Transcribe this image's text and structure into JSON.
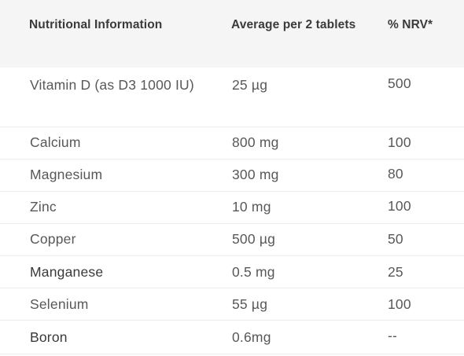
{
  "header": {
    "col1": "Nutritional Information",
    "col2": "Average per 2 tablets",
    "col3": "% NRV*"
  },
  "rows": [
    {
      "name": "Vitamin D (as D3 1000 IU)",
      "amount": "25 µg",
      "nrv": "500"
    },
    {
      "name": "Calcium",
      "amount": "800 mg",
      "nrv": "100"
    },
    {
      "name": "Magnesium",
      "amount": "300 mg",
      "nrv": "80"
    },
    {
      "name": "Zinc",
      "amount": "10 mg",
      "nrv": "100"
    },
    {
      "name": "Copper",
      "amount": "500 µg",
      "nrv": "50"
    },
    {
      "name": "Manganese",
      "amount": "0.5 mg",
      "nrv": "25"
    },
    {
      "name": "Selenium",
      "amount": "55 µg",
      "nrv": "100"
    },
    {
      "name": "Boron",
      "amount": "0.6mg",
      "nrv": "--"
    }
  ]
}
